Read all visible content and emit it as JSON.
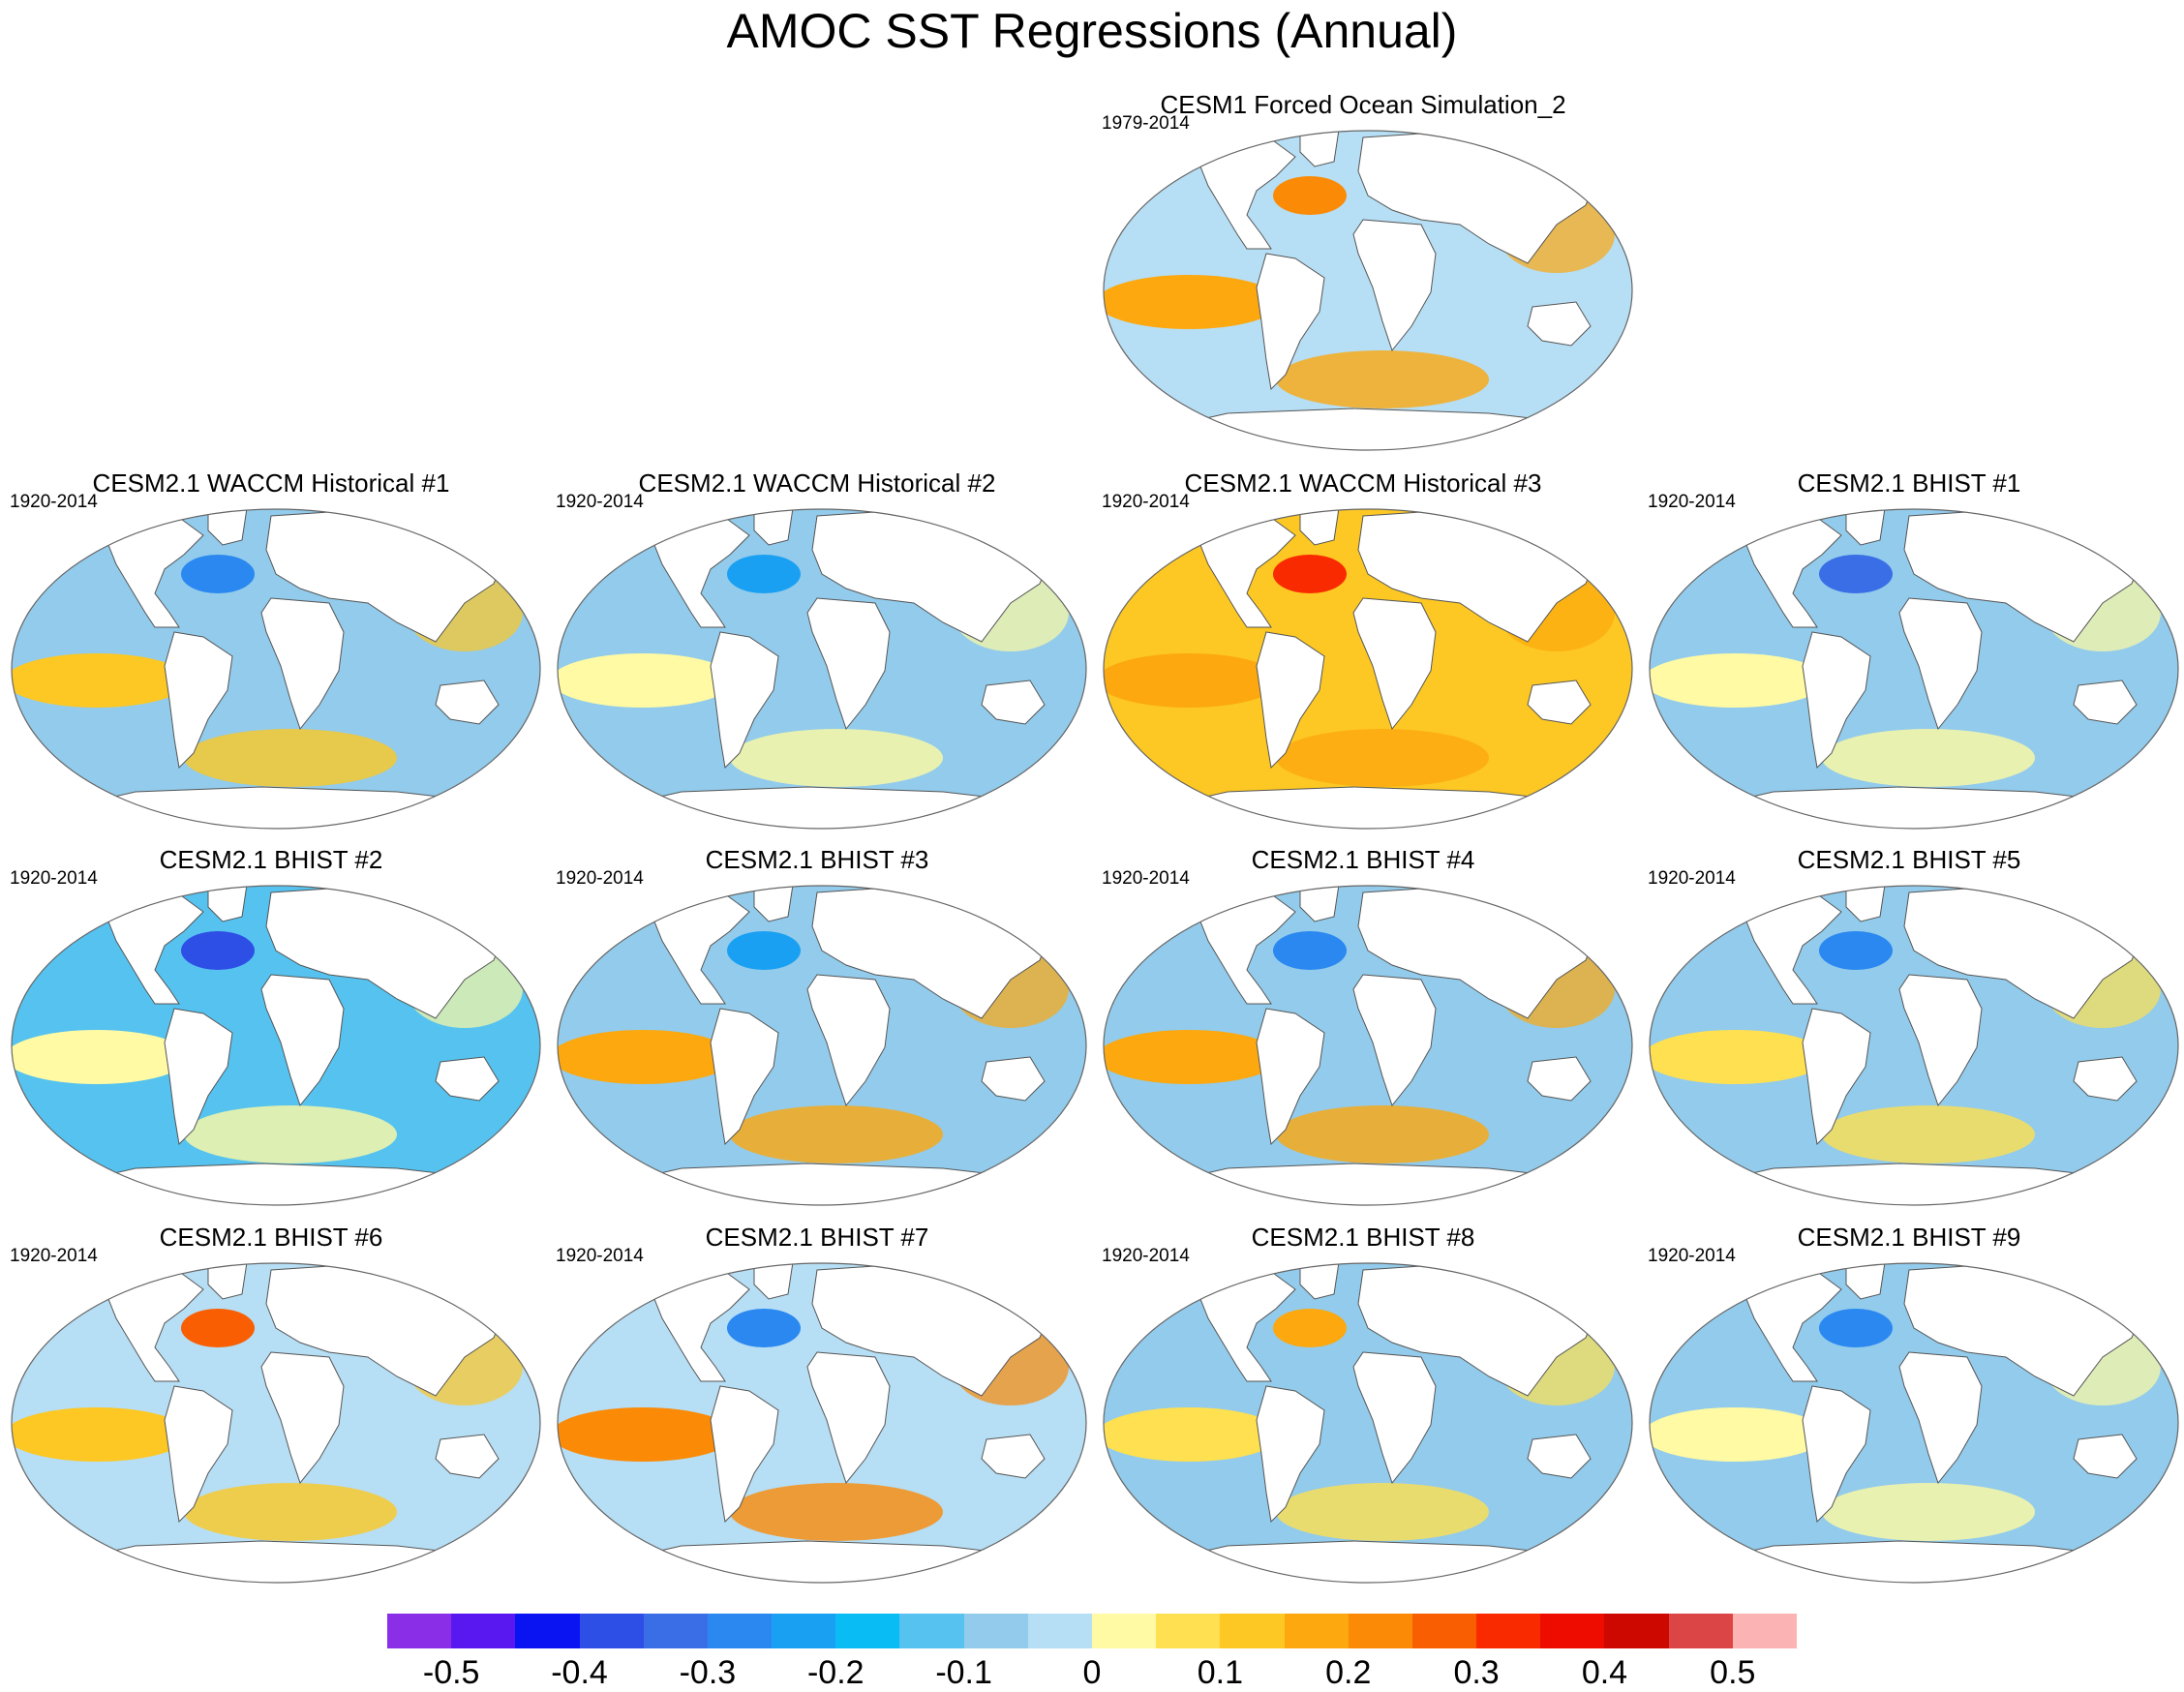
{
  "title": "AMOC SST Regressions (Annual)",
  "colorbar": {
    "colors": [
      "#8a2ee8",
      "#5a18f0",
      "#0a14f2",
      "#2e4fe6",
      "#3a6ee6",
      "#2a88f0",
      "#1aa0f2",
      "#0abcf4",
      "#55c2ef",
      "#92cbeb",
      "#b6def4",
      "#fffaa3",
      "#ffe050",
      "#fdc823",
      "#fca80e",
      "#fb8a06",
      "#fa5e03",
      "#fa2a00",
      "#ee0b00",
      "#cc0800",
      "#dc4545",
      "#fcb3b3"
    ],
    "labels": [
      "-0.5",
      "-0.4",
      "-0.3",
      "-0.2",
      "-0.1",
      "0",
      "0.1",
      "0.2",
      "0.3",
      "0.4",
      "0.5"
    ]
  },
  "panels": [
    {
      "title": "CESM1 Forced Ocean Simulation_2",
      "period": "1979-2014",
      "base": "#b6def4",
      "highlight": "#fca80e",
      "accent": "#fb8a06"
    },
    {
      "title": "CESM2.1 WACCM Historical #1",
      "period": "1920-2014",
      "base": "#92cbeb",
      "highlight": "#fdc823",
      "accent": "#2a88f0"
    },
    {
      "title": "CESM2.1 WACCM Historical #2",
      "period": "1920-2014",
      "base": "#92cbeb",
      "highlight": "#fffaa3",
      "accent": "#1aa0f2"
    },
    {
      "title": "CESM2.1 WACCM Historical #3",
      "period": "1920-2014",
      "base": "#fdc823",
      "highlight": "#fca80e",
      "accent": "#fa2a00"
    },
    {
      "title": "CESM2.1 BHIST #1",
      "period": "1920-2014",
      "base": "#92cbeb",
      "highlight": "#fffaa3",
      "accent": "#3a6ee6"
    },
    {
      "title": "CESM2.1 BHIST #2",
      "period": "1920-2014",
      "base": "#55c2ef",
      "highlight": "#fffaa3",
      "accent": "#2e4fe6"
    },
    {
      "title": "CESM2.1 BHIST #3",
      "period": "1920-2014",
      "base": "#92cbeb",
      "highlight": "#fca80e",
      "accent": "#1aa0f2"
    },
    {
      "title": "CESM2.1 BHIST #4",
      "period": "1920-2014",
      "base": "#92cbeb",
      "highlight": "#fca80e",
      "accent": "#2a88f0"
    },
    {
      "title": "CESM2.1 BHIST #5",
      "period": "1920-2014",
      "base": "#92cbeb",
      "highlight": "#ffe050",
      "accent": "#2a88f0"
    },
    {
      "title": "CESM2.1 BHIST #6",
      "period": "1920-2014",
      "base": "#b6def4",
      "highlight": "#fdc823",
      "accent": "#fa5e03"
    },
    {
      "title": "CESM2.1 BHIST #7",
      "period": "1920-2014",
      "base": "#b6def4",
      "highlight": "#fb8a06",
      "accent": "#2a88f0"
    },
    {
      "title": "CESM2.1 BHIST #8",
      "period": "1920-2014",
      "base": "#92cbeb",
      "highlight": "#ffe050",
      "accent": "#fca80e"
    },
    {
      "title": "CESM2.1 BHIST #9",
      "period": "1920-2014",
      "base": "#92cbeb",
      "highlight": "#fffaa3",
      "accent": "#2a88f0"
    }
  ]
}
